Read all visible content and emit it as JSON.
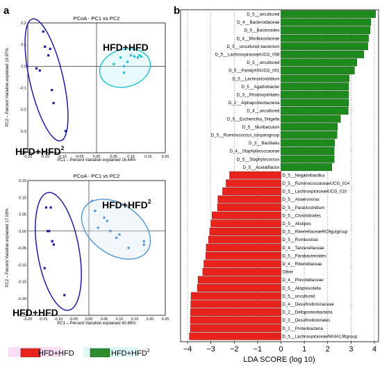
{
  "panel_labels": {
    "a": "a",
    "b": "b"
  },
  "legend": [
    {
      "label": "HFD+HFD",
      "sup": "",
      "color": "#e8231c"
    },
    {
      "label": "HFD+HFD",
      "sup": "2",
      "color": "#2e8b2e"
    }
  ],
  "chart_data": [
    {
      "type": "scatter",
      "title": "PCoA - PC1 vs PC2",
      "xlabel": "PC1 – Percent Variation explained 16.44%",
      "ylabel": "PC2 – Percent Variation explained 10.97%",
      "xlim": [
        -0.2,
        0.2
      ],
      "ylim": [
        -0.4,
        0.2
      ],
      "xticks": [
        "-0.20",
        "-0.15",
        "-0.10",
        "-0.05",
        "0.00",
        "0.05",
        "0.10",
        "0.15",
        "0.20"
      ],
      "yticks": [
        "0.2",
        "0.1",
        "0.0",
        "-0.1",
        "-0.2",
        "-0.3",
        "-0.4"
      ],
      "group_labels": [
        {
          "text": "HFD+HFD",
          "sup": ""
        },
        {
          "text": "HFD+HFD",
          "sup": "2"
        }
      ],
      "series": [
        {
          "color": "#1a1aa6",
          "points": [
            [
              -0.155,
              0.16
            ],
            [
              -0.15,
              0.09
            ],
            [
              -0.135,
              0.08
            ],
            [
              -0.14,
              0.05
            ],
            [
              -0.165,
              -0.02
            ],
            [
              -0.175,
              -0.01
            ],
            [
              -0.13,
              -0.11
            ],
            [
              -0.125,
              -0.17
            ],
            [
              -0.09,
              -0.3
            ]
          ]
        },
        {
          "color": "#22c4d4",
          "points": [
            [
              0.05,
              0.01
            ],
            [
              0.07,
              0.04
            ],
            [
              0.08,
              0.0
            ],
            [
              0.09,
              0.02
            ],
            [
              0.1,
              0.05
            ],
            [
              0.11,
              0.045
            ],
            [
              0.12,
              0.04
            ],
            [
              0.125,
              0.05
            ],
            [
              0.13,
              0.045
            ],
            [
              0.08,
              -0.03
            ]
          ]
        }
      ]
    },
    {
      "type": "scatter",
      "title": "PCoA - PC1 vs PC2",
      "xlabel": "PC1 – Percent Variation explained 40.86%",
      "ylabel": "PC2 – Percent Variation explained 17.03%",
      "xlim": [
        -0.2,
        0.25
      ],
      "ylim": [
        -0.25,
        0.15
      ],
      "xticks": [
        "-0.20",
        "-0.15",
        "-0.10",
        "-0.05",
        "0.00",
        "0.05",
        "0.10",
        "0.15",
        "0.20",
        "0.25"
      ],
      "yticks": [
        "0.15",
        "0.10",
        "0.05",
        "0.00",
        "-0.05",
        "-0.10",
        "-0.15",
        "-0.20",
        "-0.25"
      ],
      "group_labels": [
        {
          "text": "HFD+HFD",
          "sup": "2"
        },
        {
          "text": "HFD+HFD",
          "sup": ""
        }
      ],
      "series": [
        {
          "color": "#1a1aa6",
          "points": [
            [
              -0.14,
              0.07
            ],
            [
              -0.125,
              0.07
            ],
            [
              -0.135,
              0.0
            ],
            [
              -0.13,
              0.0
            ],
            [
              -0.12,
              -0.03
            ],
            [
              -0.115,
              -0.04
            ],
            [
              -0.145,
              -0.11
            ],
            [
              -0.08,
              -0.19
            ]
          ]
        },
        {
          "color": "#5b9bd5",
          "points": [
            [
              0.01,
              0.09
            ],
            [
              0.02,
              0.06
            ],
            [
              0.03,
              0.01
            ],
            [
              0.05,
              0.04
            ],
            [
              0.06,
              0.03
            ],
            [
              0.07,
              0.0
            ],
            [
              0.09,
              -0.02
            ],
            [
              0.1,
              -0.01
            ],
            [
              0.13,
              -0.05
            ],
            [
              0.18,
              -0.03
            ],
            [
              0.18,
              -0.04
            ]
          ]
        }
      ]
    },
    {
      "type": "bar",
      "orientation": "horizontal",
      "xlabel": "LDA SCORE (log 10)",
      "xlim": [
        -4,
        4
      ],
      "xticks": [
        "−4",
        "−3",
        "−2",
        "−1",
        "0",
        "1",
        "2",
        "3",
        "4"
      ],
      "categories": [
        "D_5__uncultured",
        "D_4__Bacteroidaceae",
        "D_5__Bacteroides",
        "D_4__Muribaculaceae",
        "D_5__uncultured bacterium",
        "D_5__LachnospiraceaeUCG_008",
        "D_5__uncultured",
        "D_5__FamilyXIIIUCG_001",
        "D_5__Lachnoclostridium",
        "D_5__Agathobacter",
        "D_3__Rhodospirillales",
        "D_2__Alphaproteobacteria",
        "D_4__uncultured",
        "D_5__Escherichia_Shigella",
        "D_5__Muribaculum",
        "D_5__Ruminococcus_torquesgroup",
        "D_3__Bacillales",
        "D_4__Staphylococcaceae",
        "D_5__Staphylococcus",
        "D_5__Acetatifactor",
        "D_5__Negativibacillus",
        "D_5__RuminococcaceaeUCG_014",
        "D_5__LachnospiraceaeUCG_010",
        "D_5__Anaerovorax",
        "D_5__Paraclostridium",
        "D_5__Clostridioides",
        "D_5__Alistipes",
        "D_5__RikenellaceaeRC9gutgroup",
        "D_5__Romboutsia",
        "D_4__Tannerellaceae",
        "D_5__Parabacteroides",
        "D_4__Rikenellaceae",
        "Other",
        "D_4__Prevotellaceae",
        "D_5__Alloprevotella",
        "D_5__uncultured",
        "D_4__Desulfovibrionaceae",
        "D_2__Deltaproteobacteria",
        "D_3__Desulfovibrionales",
        "D_1__Proteobacteria",
        "D_5__LachnospiraceaeNK4A136group"
      ],
      "values": [
        4.05,
        3.85,
        3.82,
        3.75,
        3.72,
        3.55,
        3.25,
        3.15,
        2.92,
        2.9,
        2.9,
        2.9,
        2.88,
        2.55,
        2.42,
        2.4,
        2.3,
        2.28,
        2.28,
        2.18,
        -2.2,
        -2.35,
        -2.5,
        -2.7,
        -2.72,
        -2.95,
        -3.0,
        -3.05,
        -3.1,
        -3.2,
        -3.22,
        -3.3,
        -3.35,
        -3.55,
        -3.58,
        -3.85,
        -3.86,
        -3.87,
        -3.88,
        -3.88,
        -3.92
      ],
      "colors": {
        "positive": "#1e8a1e",
        "negative": "#e8231c"
      }
    }
  ]
}
